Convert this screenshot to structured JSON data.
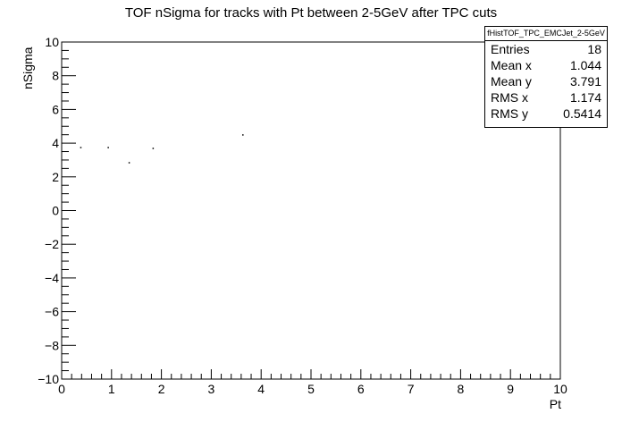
{
  "chart_data": {
    "type": "scatter",
    "title": "TOF nSigma for tracks with Pt between 2-5GeV after TPC cuts",
    "xlabel": "Pt",
    "ylabel": "nSigma",
    "xlim": [
      0,
      10
    ],
    "ylim": [
      -10,
      10
    ],
    "x_ticks": [
      "0",
      "1",
      "2",
      "3",
      "4",
      "5",
      "6",
      "7",
      "8",
      "9",
      "10"
    ],
    "y_ticks": [
      "−10",
      "−8",
      "−6",
      "−4",
      "−2",
      "0",
      "2",
      "4",
      "6",
      "8",
      "10"
    ],
    "grid": false,
    "points": [
      {
        "x": 0.38,
        "y": 3.75
      },
      {
        "x": 0.93,
        "y": 3.75
      },
      {
        "x": 1.35,
        "y": 2.85
      },
      {
        "x": 1.83,
        "y": 3.7
      },
      {
        "x": 3.63,
        "y": 4.5
      }
    ],
    "stats_box": {
      "name": "fHistTOF_TPC_EMCJet_2-5GeV",
      "rows": [
        {
          "label": "Entries",
          "value": "18"
        },
        {
          "label": "Mean x",
          "value": "1.044"
        },
        {
          "label": "Mean y",
          "value": "3.791"
        },
        {
          "label": "RMS x",
          "value": "1.174"
        },
        {
          "label": "RMS y",
          "value": "0.5414"
        }
      ]
    }
  }
}
